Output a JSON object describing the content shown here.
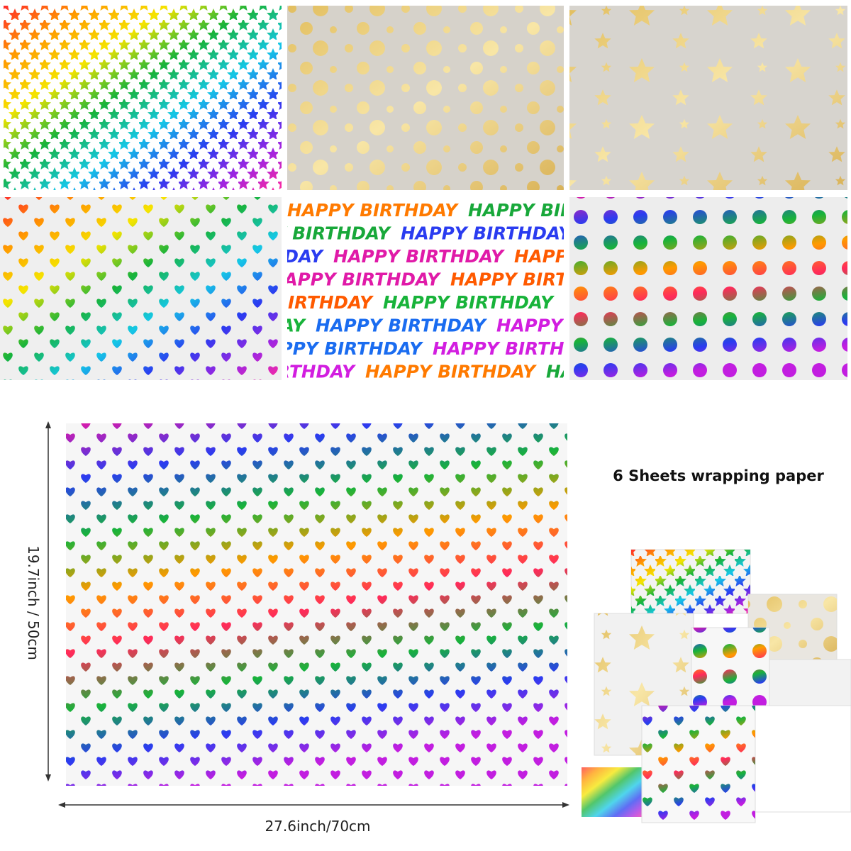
{
  "header": {
    "title": "6 Sheets wrapping paper"
  },
  "dimensions": {
    "height": "19.7inch / 50cm",
    "width": "27.6inch/70cm"
  },
  "patterns": {
    "birthday_text": "HAPPY BIRTHDAY"
  }
}
